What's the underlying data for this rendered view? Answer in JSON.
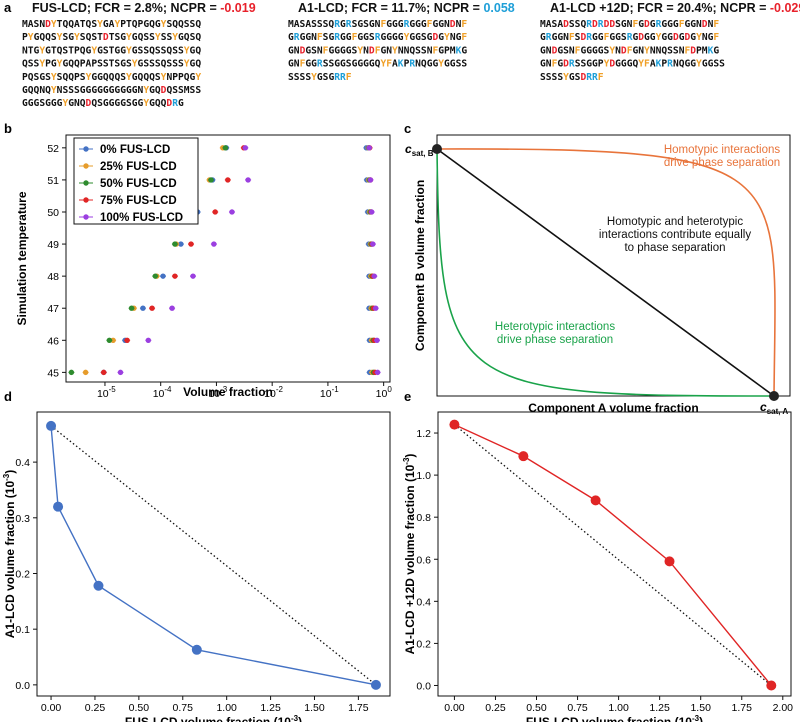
{
  "panel_labels": [
    "a",
    "b",
    "c",
    "d",
    "e"
  ],
  "colors": {
    "positive": "#1e9fd8",
    "negative": "#e8212b",
    "aromatic": "#f0a028",
    "plain": "#111111"
  },
  "sequences": [
    {
      "name": "FUS-LCD",
      "title_parts": [
        {
          "t": "FUS-LCD; FCR = 2.8%; NCPR = ",
          "c": "plain"
        },
        {
          "t": "-0.019",
          "c": "negative"
        }
      ],
      "lines": [
        "MASNDYTQQATQSYGAYPTQPGQGYSQQSSQ",
        "PYGQQSYSGYSQSTDTSGYGQSSYSSYGQSQ",
        "NTGYGTQSTPQGYGSTGGYGSSQSSQSSYGQ",
        "QSSYPGYGQQPAPSSTSGSYGSSSQSSSYGQ",
        "PQSGSYSQQPSYGGQQQSYGQQQSYNPPQGY",
        "GQQNQYNSSSGGGGGGGGGGNYGQDQSSMSS",
        "GGGSGGGYGNQDQSGGGGSGGYGQQDRG"
      ]
    },
    {
      "name": "A1-LCD",
      "title_parts": [
        {
          "t": "A1-LCD; FCR = 11.7%; NCPR = ",
          "c": "plain"
        },
        {
          "t": "0.058",
          "c": "positive"
        }
      ],
      "lines": [
        "MASASSSQRGRSGSGNFGGGRGGGFGGNDNF",
        "GRGGNFSGRGGFGGSRGGGGYGGSGDGYNGF",
        "GNDGSNFGGGGSYNDFGNYNNQSSNFGPMKG",
        "GNFGGRSSGGSGGGGQYFAKPRNQGGYGGSS",
        "SSSSYGSGRRF"
      ]
    },
    {
      "name": "A1-LCD +12D",
      "title_parts": [
        {
          "t": "A1-LCD +12D; FCR = 20.4%; NCPR = ",
          "c": "plain"
        },
        {
          "t": "-0.029",
          "c": "negative"
        }
      ],
      "lines": [
        "MASADSSQRDRDDSGNFGDGRGGGFGGNDNF",
        "GRGGNFSDRGGFGGSRGDGGYGGDGDGYNGF",
        "GNDGSNFGGGGSYNDFGNYNNQSSNFDPMKG",
        "GNFGDRSSGGPYDGGGQYFAKPRNQGGYGGSS",
        "SSSSYGSDRRF"
      ]
    }
  ],
  "chart_data": [
    {
      "panel": "b",
      "type": "scatter",
      "xlabel": "Volume fraction",
      "ylabel": "Simulation temperature",
      "xscale": "log",
      "xlim": [
        2e-06,
        1.3
      ],
      "ylim": [
        44.7,
        52.4
      ],
      "xticks": [
        {
          "v": 1e-05,
          "base": "10",
          "exp": "-5"
        },
        {
          "v": 0.0001,
          "base": "10",
          "exp": "-4"
        },
        {
          "v": 0.001,
          "base": "10",
          "exp": "-3"
        },
        {
          "v": 0.01,
          "base": "10",
          "exp": "-2"
        },
        {
          "v": 0.1,
          "base": "10",
          "exp": "-1"
        },
        {
          "v": 1,
          "base": "10",
          "exp": "0"
        }
      ],
      "yticks": [
        45,
        46,
        47,
        48,
        49,
        50,
        51,
        52
      ],
      "legend_loc": "upper-left",
      "series": [
        {
          "name": "0% FUS-LCD",
          "color": "#4472c4",
          "dilute": [
            [
              9.5e-06,
              45
            ],
            [
              2.3e-05,
              46
            ],
            [
              4.8e-05,
              47
            ],
            [
              0.00011,
              48
            ],
            [
              0.00023,
              49
            ],
            [
              0.00046,
              50
            ],
            [
              0.00085,
              51
            ],
            [
              0.0015,
              52
            ]
          ],
          "dense": [
            [
              0.56,
              45
            ],
            [
              0.56,
              46
            ],
            [
              0.55,
              47
            ],
            [
              0.55,
              48
            ],
            [
              0.54,
              49
            ],
            [
              0.52,
              50
            ],
            [
              0.5,
              51
            ],
            [
              0.49,
              52
            ]
          ]
        },
        {
          "name": "25% FUS-LCD",
          "color": "#e69c2b",
          "dilute": [
            [
              4.5e-06,
              45
            ],
            [
              1.4e-05,
              46
            ],
            [
              3.3e-05,
              47
            ],
            [
              8.5e-05,
              48
            ],
            [
              0.00019,
              49
            ],
            [
              0.00041,
              50
            ],
            [
              0.00075,
              51
            ],
            [
              0.0013,
              52
            ]
          ],
          "dense": [
            [
              0.62,
              45
            ],
            [
              0.61,
              46
            ],
            [
              0.6,
              47
            ],
            [
              0.59,
              48
            ],
            [
              0.58,
              49
            ],
            [
              0.56,
              50
            ],
            [
              0.54,
              51
            ],
            [
              0.53,
              52
            ]
          ]
        },
        {
          "name": "50% FUS-LCD",
          "color": "#2e8b2e",
          "dilute": [
            [
              2.5e-06,
              45
            ],
            [
              1.2e-05,
              46
            ],
            [
              3e-05,
              47
            ],
            [
              8e-05,
              48
            ],
            [
              0.00018,
              49
            ],
            [
              0.0004,
              50
            ],
            [
              0.0008,
              51
            ],
            [
              0.00145,
              52
            ]
          ],
          "dense": [
            [
              0.66,
              45
            ],
            [
              0.65,
              46
            ],
            [
              0.63,
              47
            ],
            [
              0.62,
              48
            ],
            [
              0.6,
              49
            ],
            [
              0.58,
              50
            ],
            [
              0.56,
              51
            ],
            [
              0.54,
              52
            ]
          ]
        },
        {
          "name": "75% FUS-LCD",
          "color": "#e02525",
          "dilute": [
            [
              9.5e-06,
              45
            ],
            [
              2.5e-05,
              46
            ],
            [
              7e-05,
              47
            ],
            [
              0.00018,
              48
            ],
            [
              0.00035,
              49
            ],
            [
              0.00095,
              50
            ],
            [
              0.0016,
              51
            ],
            [
              0.0031,
              52
            ]
          ],
          "dense": [
            [
              0.7,
              45
            ],
            [
              0.68,
              46
            ],
            [
              0.66,
              47
            ],
            [
              0.64,
              48
            ],
            [
              0.62,
              49
            ],
            [
              0.6,
              50
            ],
            [
              0.58,
              51
            ],
            [
              0.56,
              52
            ]
          ]
        },
        {
          "name": "100% FUS-LCD",
          "color": "#9b3fe0",
          "dilute": [
            [
              1.9e-05,
              45
            ],
            [
              6e-05,
              46
            ],
            [
              0.00016,
              47
            ],
            [
              0.00038,
              48
            ],
            [
              0.0009,
              49
            ],
            [
              0.0019,
              50
            ],
            [
              0.0037,
              51
            ],
            [
              0.0033,
              52
            ]
          ],
          "dense": [
            [
              0.78,
              45
            ],
            [
              0.76,
              46
            ],
            [
              0.72,
              47
            ],
            [
              0.68,
              48
            ],
            [
              0.64,
              49
            ],
            [
              0.61,
              50
            ],
            [
              0.58,
              51
            ],
            [
              0.55,
              52
            ]
          ]
        }
      ]
    },
    {
      "panel": "c",
      "type": "line",
      "xlabel": "Component A volume fraction",
      "ylabel": "Component B volume fraction",
      "point_labels": [
        {
          "base": "c",
          "sub": "sat, B"
        },
        {
          "base": "c",
          "sub": "sat, A"
        }
      ],
      "annotations": [
        {
          "lines": [
            "Homotypic interactions",
            "drive phase separation"
          ],
          "color": "#e8743b"
        },
        {
          "lines": [
            "Homotypic and heterotypic",
            "interactions contribute equally",
            "to phase separation"
          ],
          "color": "#111111"
        },
        {
          "lines": [
            "Heterotypic interactions",
            "drive phase separation"
          ],
          "color": "#1aa34a"
        }
      ],
      "series": [
        {
          "color": "#e8743b",
          "shape": "concave-up-right"
        },
        {
          "color": "#111111",
          "shape": "straight"
        },
        {
          "color": "#1aa34a",
          "shape": "convex-down-left"
        }
      ]
    },
    {
      "panel": "d",
      "type": "line",
      "xlabel": "FUS-LCD volume fraction (10",
      "xlabel_exp": "-3",
      "ylabel": "A1-LCD volume fraction (10",
      "ylabel_exp": "-3",
      "xlim": [
        -0.08,
        1.93
      ],
      "ylim": [
        -0.02,
        0.49
      ],
      "xticks": [
        "0.00",
        "0.25",
        "0.50",
        "0.75",
        "1.00",
        "1.25",
        "1.50",
        "1.75"
      ],
      "yticks": [
        "0.0",
        "0.1",
        "0.2",
        "0.3",
        "0.4"
      ],
      "color": "#4472c4",
      "x": [
        0.0,
        0.04,
        0.27,
        0.83,
        1.85
      ],
      "y": [
        0.465,
        0.32,
        0.178,
        0.063,
        0.0
      ],
      "reference_line": [
        [
          0.0,
          0.465
        ],
        [
          1.85,
          0.0
        ]
      ]
    },
    {
      "panel": "e",
      "type": "line",
      "xlabel": "FUS-LCD volume fraction (10",
      "xlabel_exp": "-3",
      "ylabel": "A1-LCD +12D volume fraction (10",
      "ylabel_exp": "-3",
      "xlim": [
        -0.1,
        2.05
      ],
      "ylim": [
        -0.05,
        1.3
      ],
      "xticks": [
        "0.00",
        "0.25",
        "0.50",
        "0.75",
        "1.00",
        "1.25",
        "1.50",
        "1.75",
        "2.00"
      ],
      "yticks": [
        "0.0",
        "0.2",
        "0.4",
        "0.6",
        "0.8",
        "1.0",
        "1.2"
      ],
      "color": "#e02525",
      "x": [
        0.0,
        0.42,
        0.86,
        1.31,
        1.93
      ],
      "y": [
        1.24,
        1.09,
        0.88,
        0.59,
        0.0
      ],
      "reference_line": [
        [
          0.0,
          1.24
        ],
        [
          1.93,
          0.0
        ]
      ]
    }
  ]
}
